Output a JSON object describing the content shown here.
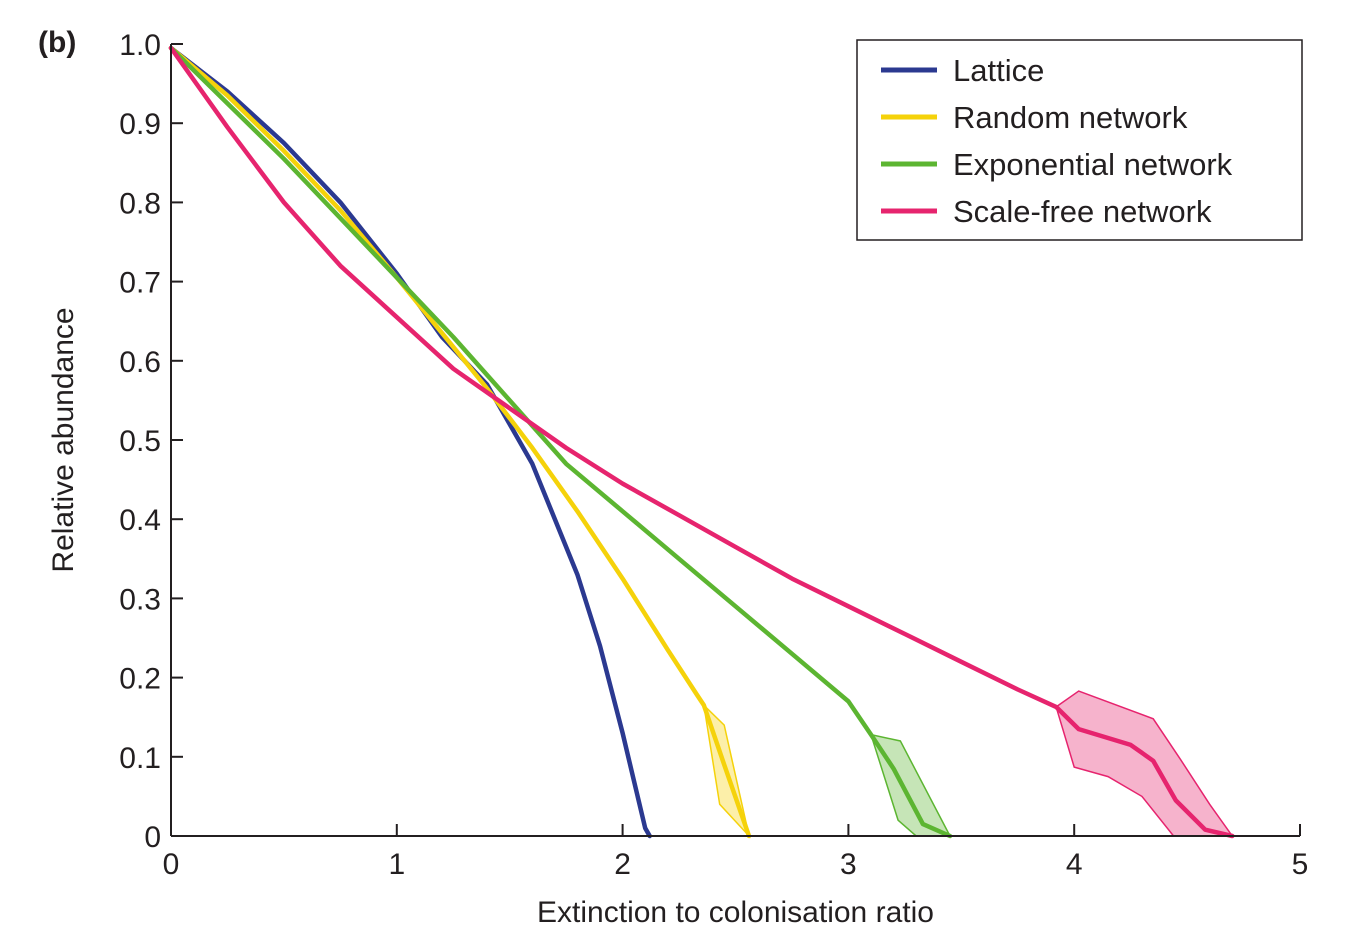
{
  "panel_label": "(b)",
  "chart_data": {
    "type": "line",
    "title": "",
    "xlabel": "Extinction to colonisation ratio",
    "ylabel": "Relative abundance",
    "xlim": [
      0,
      5
    ],
    "ylim": [
      0,
      1.0
    ],
    "x_ticks": [
      0,
      1,
      2,
      3,
      4,
      5
    ],
    "x_tick_labels": [
      "0",
      "1",
      "2",
      "3",
      "4",
      "5"
    ],
    "y_ticks": [
      0,
      0.1,
      0.2,
      0.3,
      0.4,
      0.5,
      0.6,
      0.7,
      0.8,
      0.9,
      1.0
    ],
    "y_tick_labels": [
      "0",
      "0.1",
      "0.2",
      "0.3",
      "0.4",
      "0.5",
      "0.6",
      "0.7",
      "0.8",
      "0.9",
      "1.0"
    ],
    "grid": false,
    "legend_position": "top-right",
    "series": [
      {
        "name": "Lattice",
        "color": "#2b3990",
        "x": [
          0,
          0.25,
          0.5,
          0.75,
          1.0,
          1.2,
          1.4,
          1.6,
          1.8,
          1.9,
          2.0,
          2.05,
          2.1,
          2.12
        ],
        "y": [
          0.995,
          0.94,
          0.875,
          0.8,
          0.71,
          0.63,
          0.57,
          0.47,
          0.33,
          0.24,
          0.13,
          0.07,
          0.01,
          0.0
        ]
      },
      {
        "name": "Random network",
        "color": "#f5d20a",
        "x": [
          0,
          0.25,
          0.5,
          0.75,
          1.0,
          1.2,
          1.4,
          1.6,
          1.8,
          2.0,
          2.2,
          2.33,
          2.36,
          2.45,
          2.56
        ],
        "y": [
          0.995,
          0.935,
          0.865,
          0.79,
          0.705,
          0.635,
          0.565,
          0.49,
          0.41,
          0.325,
          0.235,
          0.178,
          0.165,
          0.09,
          0.0
        ]
      },
      {
        "name": "Exponential network",
        "color": "#5cb531",
        "x": [
          0,
          0.25,
          0.5,
          0.75,
          1.0,
          1.25,
          1.5,
          1.75,
          2.0,
          2.25,
          2.5,
          2.75,
          3.0,
          3.1,
          3.2,
          3.33,
          3.45
        ],
        "y": [
          0.995,
          0.925,
          0.855,
          0.78,
          0.705,
          0.63,
          0.55,
          0.47,
          0.41,
          0.35,
          0.29,
          0.23,
          0.17,
          0.128,
          0.085,
          0.015,
          0.0
        ]
      },
      {
        "name": "Scale-free network",
        "color": "#e6246e",
        "x": [
          0,
          0.25,
          0.5,
          0.75,
          1.0,
          1.25,
          1.5,
          1.75,
          2.0,
          2.25,
          2.5,
          2.75,
          3.0,
          3.25,
          3.5,
          3.75,
          3.92,
          4.02,
          4.25,
          4.35,
          4.45,
          4.58,
          4.7
        ],
        "y": [
          0.995,
          0.895,
          0.8,
          0.72,
          0.655,
          0.59,
          0.54,
          0.49,
          0.445,
          0.405,
          0.365,
          0.325,
          0.29,
          0.255,
          0.22,
          0.185,
          0.163,
          0.135,
          0.115,
          0.095,
          0.045,
          0.008,
          0.0
        ]
      }
    ],
    "bands": [
      {
        "series": "Random network",
        "color": "#f5d20a",
        "upper_x": [
          2.36,
          2.45,
          2.56
        ],
        "upper_y": [
          0.165,
          0.14,
          0.0
        ],
        "lower_x": [
          2.36,
          2.43,
          2.56
        ],
        "lower_y": [
          0.165,
          0.04,
          0.0
        ]
      },
      {
        "series": "Exponential network",
        "color": "#5cb531",
        "upper_x": [
          3.1,
          3.23,
          3.45
        ],
        "upper_y": [
          0.128,
          0.12,
          0.0
        ],
        "lower_x": [
          3.1,
          3.22,
          3.3,
          3.45
        ],
        "lower_y": [
          0.128,
          0.02,
          0.0,
          0.0
        ]
      },
      {
        "series": "Scale-free network",
        "color": "#e6246e",
        "upper_x": [
          3.92,
          4.02,
          4.35,
          4.47,
          4.6,
          4.7
        ],
        "upper_y": [
          0.163,
          0.183,
          0.148,
          0.097,
          0.04,
          0.0
        ],
        "lower_x": [
          3.92,
          4.0,
          4.15,
          4.3,
          4.44,
          4.7
        ],
        "lower_y": [
          0.163,
          0.087,
          0.075,
          0.05,
          0.0,
          0.0
        ]
      }
    ]
  }
}
